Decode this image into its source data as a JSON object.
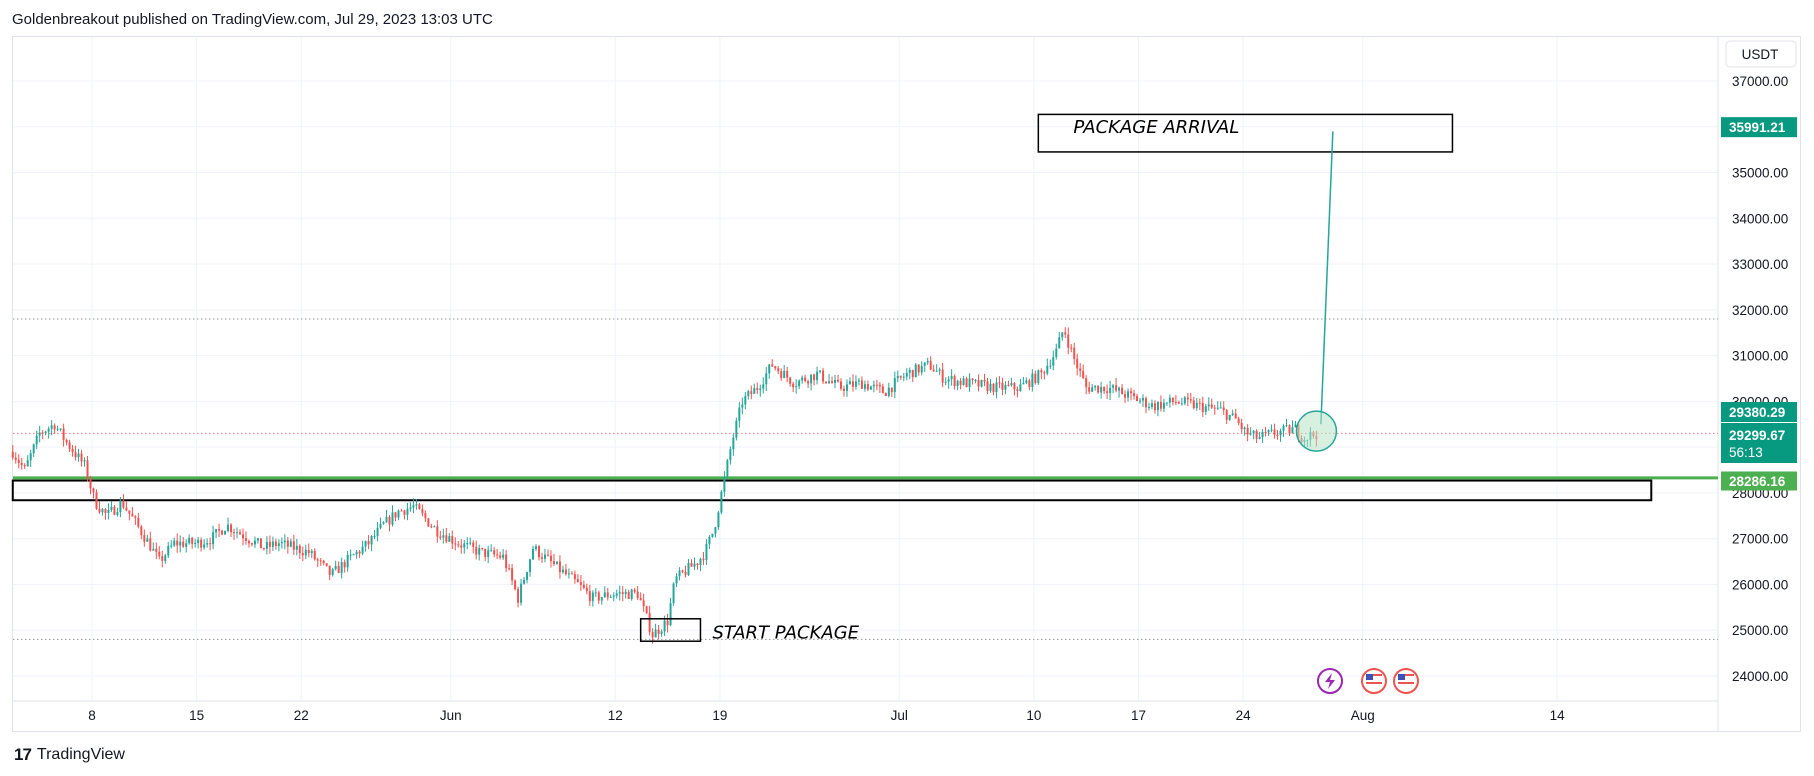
{
  "publisher_line": "Goldenbreakout published on TradingView.com, Jul 29, 2023 13:03 UTC",
  "brand": {
    "logo_glyph": "17",
    "name": "TradingView"
  },
  "colors": {
    "up": "#26a69a",
    "down": "#ef5350",
    "grid": "#f0f3fa",
    "axis_text": "#131722",
    "support": "#4caf50",
    "target_badge": "#089981",
    "circle_fill": "#b7e4c7",
    "circle_stroke": "#26a69a",
    "dotted_red": "#f77c80",
    "dotted_gray": "#9598a1"
  },
  "chart_data": {
    "type": "candlestick",
    "currency": "USDT",
    "y_ticks": [
      "24000.00",
      "25000.00",
      "26000.00",
      "27000.00",
      "28000.00",
      "29000.00",
      "30000.00",
      "31000.00",
      "32000.00",
      "33000.00",
      "34000.00",
      "35000.00",
      "36000.00",
      "37000.00"
    ],
    "ylim": [
      23400,
      37400
    ],
    "x_ticks": [
      {
        "label": "8",
        "day": 8
      },
      {
        "label": "15",
        "day": 15
      },
      {
        "label": "22",
        "day": 22
      },
      {
        "label": "Jun",
        "day": 32
      },
      {
        "label": "12",
        "day": 43
      },
      {
        "label": "19",
        "day": 50
      },
      {
        "label": "Jul",
        "day": 62
      },
      {
        "label": "10",
        "day": 71
      },
      {
        "label": "17",
        "day": 78
      },
      {
        "label": "24",
        "day": 85
      },
      {
        "label": "Aug",
        "day": 93
      },
      {
        "label": "14",
        "day": 106
      }
    ],
    "x_range_days": [
      2.7,
      112.5
    ],
    "price_path": [
      [
        2.7,
        28900
      ],
      [
        3.5,
        28500
      ],
      [
        4.5,
        29300
      ],
      [
        5.5,
        29500
      ],
      [
        6.3,
        29100
      ],
      [
        7.5,
        28600
      ],
      [
        8.2,
        27800
      ],
      [
        9.0,
        27500
      ],
      [
        10.0,
        27800
      ],
      [
        11.0,
        27300
      ],
      [
        11.8,
        26900
      ],
      [
        12.5,
        26500
      ],
      [
        13.5,
        26900
      ],
      [
        15.0,
        26900
      ],
      [
        16.0,
        27000
      ],
      [
        17.0,
        27300
      ],
      [
        18.5,
        27000
      ],
      [
        19.5,
        26800
      ],
      [
        20.5,
        26900
      ],
      [
        22.5,
        26700
      ],
      [
        24.0,
        26200
      ],
      [
        25.0,
        26500
      ],
      [
        26.5,
        26900
      ],
      [
        27.5,
        27300
      ],
      [
        28.5,
        27600
      ],
      [
        29.5,
        27700
      ],
      [
        31.0,
        27200
      ],
      [
        32.5,
        26900
      ],
      [
        34.0,
        26700
      ],
      [
        35.5,
        26600
      ],
      [
        36.5,
        25700
      ],
      [
        37.5,
        26800
      ],
      [
        39.0,
        26400
      ],
      [
        40.5,
        26000
      ],
      [
        41.5,
        25700
      ],
      [
        43.0,
        25800
      ],
      [
        44.5,
        25800
      ],
      [
        45.5,
        24900
      ],
      [
        46.5,
        25200
      ],
      [
        47.0,
        26100
      ],
      [
        48.5,
        26500
      ],
      [
        49.0,
        26700
      ],
      [
        49.6,
        27200
      ],
      [
        50.3,
        28300
      ],
      [
        50.8,
        29100
      ],
      [
        51.5,
        30000
      ],
      [
        52.5,
        30300
      ],
      [
        53.5,
        30800
      ],
      [
        55.0,
        30400
      ],
      [
        56.5,
        30600
      ],
      [
        58.0,
        30300
      ],
      [
        59.5,
        30400
      ],
      [
        61.0,
        30200
      ],
      [
        62.5,
        30600
      ],
      [
        64.0,
        30800
      ],
      [
        65.0,
        30500
      ],
      [
        66.5,
        30400
      ],
      [
        68.5,
        30300
      ],
      [
        70.0,
        30300
      ],
      [
        71.5,
        30600
      ],
      [
        72.5,
        31100
      ],
      [
        73.0,
        31600
      ],
      [
        73.6,
        31000
      ],
      [
        74.5,
        30300
      ],
      [
        76.0,
        30300
      ],
      [
        77.5,
        30100
      ],
      [
        79.0,
        29900
      ],
      [
        80.5,
        30000
      ],
      [
        82.0,
        29900
      ],
      [
        83.5,
        29800
      ],
      [
        84.5,
        29600
      ],
      [
        85.2,
        29300
      ],
      [
        86.0,
        29200
      ],
      [
        87.0,
        29300
      ],
      [
        88.5,
        29400
      ],
      [
        89.0,
        29200
      ],
      [
        90.0,
        29300
      ]
    ],
    "price_labels": [
      {
        "text": "35991.21",
        "value": 35991.21,
        "kind": "target"
      },
      {
        "text": "29380.29",
        "value": 29380.29,
        "kind": "last"
      },
      {
        "text": "29299.67",
        "value": 29299.67,
        "kind": "current"
      },
      {
        "text": "56:13",
        "value": 29000,
        "kind": "countdown"
      },
      {
        "text": "28286.16",
        "value": 28286.16,
        "kind": "support"
      }
    ],
    "horizontal_lines": [
      {
        "value": 31800,
        "style": "dotted",
        "color": "#9598a1"
      },
      {
        "value": 29299.67,
        "style": "dotted",
        "color": "#f77c80"
      },
      {
        "value": 24800,
        "style": "dotted",
        "color": "#9598a1"
      },
      {
        "value": 28330,
        "style": "solid",
        "color": "#4caf50"
      }
    ],
    "zone_box": {
      "from_day": 2.7,
      "to_day": 112.3,
      "top": 28270,
      "bottom": 27840
    },
    "annotations": {
      "start_box": {
        "text": "START PACKAGE",
        "from_day": 44.7,
        "to_day": 48.7,
        "top": 25250,
        "bottom": 24760
      },
      "arrival_box": {
        "text": "PACKAGE ARRIVAL",
        "from_day": 71.3,
        "to_day": 99.0,
        "top": 36270,
        "bottom": 35450
      },
      "target_line": {
        "from_day": 90.2,
        "from_value": 29500,
        "to_day": 91.0,
        "to_value": 35900
      },
      "circle": {
        "day": 89.9,
        "value": 29350
      }
    },
    "event_icons": [
      "lightning-icon",
      "us-flag-icon",
      "us-flag-icon"
    ]
  }
}
